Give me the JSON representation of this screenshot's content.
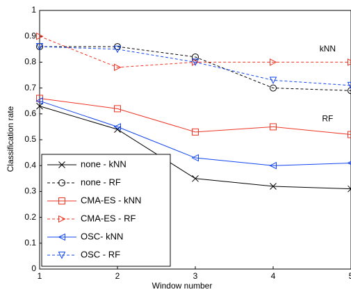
{
  "chart_data": {
    "type": "line",
    "xlabel": "Window number",
    "ylabel": "Classification rate",
    "x": [
      1,
      2,
      3,
      4,
      5
    ],
    "xlim": [
      1,
      5
    ],
    "xticks": [
      1,
      2,
      3,
      4,
      5
    ],
    "ylim": [
      0,
      1
    ],
    "yticks": [
      0,
      0.1,
      0.2,
      0.3,
      0.4,
      0.5,
      0.6,
      0.7,
      0.8,
      0.9,
      1
    ],
    "grid": false,
    "legend": "lower left",
    "annotations": [
      {
        "text": "kNN",
        "x": 4.7,
        "y": 0.85
      },
      {
        "text": "RF",
        "x": 4.7,
        "y": 0.58
      }
    ],
    "series": [
      {
        "name": "none - kNN",
        "color": "#000000",
        "marker": "x",
        "linestyle": "solid",
        "values": [
          0.63,
          0.54,
          0.35,
          0.32,
          0.31
        ]
      },
      {
        "name": "none - RF",
        "color": "#000000",
        "marker": "circle",
        "linestyle": "dashed",
        "values": [
          0.86,
          0.86,
          0.82,
          0.7,
          0.69
        ]
      },
      {
        "name": "CMA-ES - kNN",
        "color": "#ee3322",
        "marker": "square",
        "linestyle": "solid",
        "values": [
          0.66,
          0.62,
          0.53,
          0.55,
          0.52
        ]
      },
      {
        "name": "CMA-ES - RF",
        "color": "#ee3322",
        "marker": "triangle-right",
        "linestyle": "dashed",
        "values": [
          0.9,
          0.78,
          0.8,
          0.8,
          0.8
        ]
      },
      {
        "name": "OSC- kNN",
        "color": "#1144ee",
        "marker": "triangle-left",
        "linestyle": "solid",
        "values": [
          0.65,
          0.55,
          0.43,
          0.4,
          0.41
        ]
      },
      {
        "name": "OSC - RF",
        "color": "#1144ee",
        "marker": "triangle-down",
        "linestyle": "dashed",
        "values": [
          0.86,
          0.85,
          0.8,
          0.73,
          0.71
        ]
      }
    ]
  }
}
